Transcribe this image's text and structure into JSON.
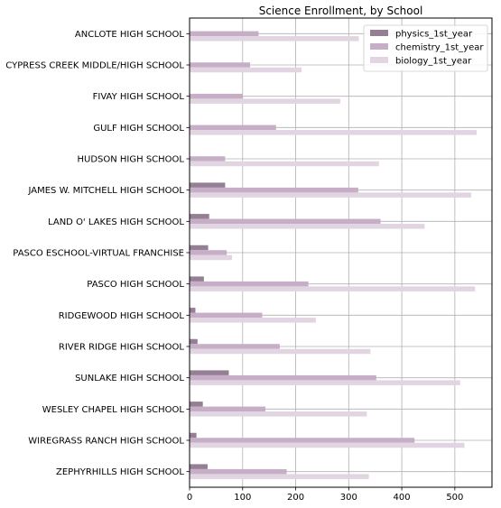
{
  "chart_data": {
    "type": "bar",
    "orientation": "horizontal",
    "title": "Science Enrollment, by School",
    "xlabel": "",
    "ylabel": "",
    "xlim": [
      0,
      570
    ],
    "x_ticks": [
      0,
      100,
      200,
      300,
      400,
      500
    ],
    "grid": true,
    "legend_position": "top-right",
    "categories": [
      "ANCLOTE HIGH SCHOOL",
      "CYPRESS CREEK MIDDLE/HIGH SCHOOL",
      "FIVAY HIGH SCHOOL",
      "GULF HIGH SCHOOL",
      "HUDSON HIGH SCHOOL",
      "JAMES W. MITCHELL HIGH SCHOOL",
      "LAND O' LAKES HIGH SCHOOL",
      "PASCO ESCHOOL-VIRTUAL FRANCHISE",
      "PASCO HIGH SCHOOL",
      "RIDGEWOOD HIGH SCHOOL",
      "RIVER RIDGE HIGH SCHOOL",
      "SUNLAKE HIGH SCHOOL",
      "WESLEY CHAPEL HIGH SCHOOL",
      "WIREGRASS RANCH HIGH SCHOOL",
      "ZEPHYRHILLS HIGH SCHOOL"
    ],
    "series": [
      {
        "name": "physics_1st_year",
        "color": "#957f95",
        "values": [
          0,
          0,
          0,
          0,
          0,
          67,
          37,
          35,
          27,
          11,
          15,
          74,
          25,
          13,
          34
        ]
      },
      {
        "name": "chemistry_1st_year",
        "color": "#c6afc6",
        "values": [
          130,
          114,
          100,
          163,
          67,
          318,
          360,
          70,
          224,
          137,
          170,
          352,
          143,
          424,
          183
        ]
      },
      {
        "name": "biology_1st_year",
        "color": "#e2d5e2",
        "values": [
          319,
          211,
          284,
          541,
          357,
          531,
          443,
          80,
          538,
          238,
          341,
          510,
          334,
          518,
          338
        ]
      }
    ]
  }
}
